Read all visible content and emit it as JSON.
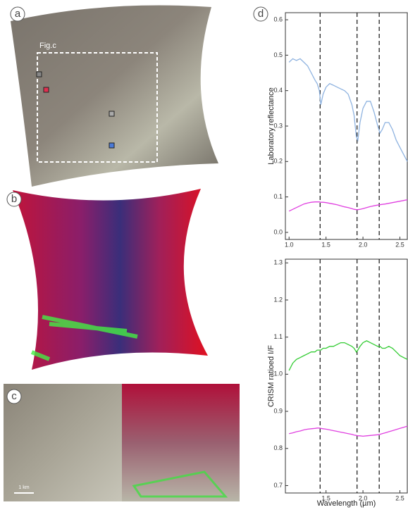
{
  "panel_labels": [
    "a",
    "b",
    "c",
    "d"
  ],
  "annotations": {
    "inset": "Fig.c",
    "scale_bar": "1 km"
  },
  "chart_data": [
    {
      "type": "line",
      "ylabel": "Laboratory reflectance",
      "x": [
        1.0,
        1.05,
        1.1,
        1.15,
        1.2,
        1.25,
        1.3,
        1.35,
        1.38,
        1.41,
        1.43,
        1.46,
        1.5,
        1.55,
        1.6,
        1.65,
        1.7,
        1.75,
        1.8,
        1.85,
        1.88,
        1.91,
        1.93,
        1.96,
        2.0,
        2.05,
        2.1,
        2.15,
        2.2,
        2.23,
        2.26,
        2.3,
        2.35,
        2.4,
        2.45,
        2.5,
        2.55,
        2.6
      ],
      "series": [
        {
          "color": "#8fb3e0",
          "values": [
            0.48,
            0.49,
            0.485,
            0.49,
            0.48,
            0.47,
            0.45,
            0.43,
            0.42,
            0.4,
            0.36,
            0.39,
            0.41,
            0.42,
            0.415,
            0.41,
            0.405,
            0.4,
            0.39,
            0.36,
            0.33,
            0.27,
            0.26,
            0.31,
            0.35,
            0.37,
            0.37,
            0.34,
            0.3,
            0.28,
            0.29,
            0.31,
            0.31,
            0.29,
            0.26,
            0.24,
            0.22,
            0.2
          ]
        },
        {
          "color": "#e040e0",
          "values": [
            0.06,
            0.065,
            0.07,
            0.075,
            0.08,
            0.083,
            0.085,
            0.086,
            0.086,
            0.086,
            0.085,
            0.085,
            0.084,
            0.082,
            0.08,
            0.078,
            0.075,
            0.072,
            0.07,
            0.067,
            0.065,
            0.064,
            0.064,
            0.065,
            0.067,
            0.07,
            0.073,
            0.075,
            0.077,
            0.078,
            0.079,
            0.08,
            0.082,
            0.084,
            0.086,
            0.088,
            0.09,
            0.092
          ]
        }
      ],
      "xlim": [
        0.95,
        2.6
      ],
      "xticks": [
        {
          "value": 1,
          "label": "1.0"
        },
        1.5,
        {
          "value": 2,
          "label": "2.0"
        },
        2.5
      ],
      "ylim": [
        -0.02,
        0.62
      ],
      "yticks": [
        {
          "value": 0,
          "label": "0.0"
        },
        0.1,
        0.2,
        0.3,
        0.4,
        0.5,
        0.6
      ],
      "vlines": [
        1.42,
        1.92,
        2.22
      ]
    },
    {
      "type": "line",
      "ylabel": "CRISM ratioed I/F",
      "xlabel": "Wavelength (µm)",
      "x": [
        1.0,
        1.05,
        1.1,
        1.15,
        1.2,
        1.25,
        1.3,
        1.35,
        1.38,
        1.41,
        1.43,
        1.46,
        1.5,
        1.55,
        1.6,
        1.65,
        1.7,
        1.75,
        1.8,
        1.85,
        1.88,
        1.91,
        1.93,
        1.96,
        2.0,
        2.05,
        2.1,
        2.15,
        2.2,
        2.23,
        2.26,
        2.3,
        2.35,
        2.4,
        2.45,
        2.5,
        2.55,
        2.6
      ],
      "series": [
        {
          "color": "#33cc33",
          "values": [
            1.01,
            1.03,
            1.04,
            1.045,
            1.05,
            1.055,
            1.06,
            1.06,
            1.065,
            1.065,
            1.065,
            1.07,
            1.07,
            1.075,
            1.075,
            1.08,
            1.085,
            1.085,
            1.08,
            1.075,
            1.07,
            1.06,
            1.065,
            1.075,
            1.085,
            1.09,
            1.085,
            1.08,
            1.075,
            1.075,
            1.07,
            1.07,
            1.075,
            1.07,
            1.06,
            1.05,
            1.045,
            1.04
          ]
        },
        {
          "color": "#e040e0",
          "values": [
            0.84,
            0.842,
            0.845,
            0.847,
            0.85,
            0.852,
            0.853,
            0.854,
            0.855,
            0.855,
            0.854,
            0.853,
            0.852,
            0.85,
            0.848,
            0.846,
            0.844,
            0.842,
            0.84,
            0.838,
            0.836,
            0.835,
            0.834,
            0.834,
            0.833,
            0.834,
            0.835,
            0.836,
            0.837,
            0.838,
            0.84,
            0.842,
            0.845,
            0.848,
            0.851,
            0.854,
            0.857,
            0.86
          ]
        }
      ],
      "xlim": [
        0.95,
        2.6
      ],
      "xticks": [
        1.5,
        {
          "value": 2,
          "label": "2.0"
        },
        2.5
      ],
      "ylim": [
        0.68,
        1.31
      ],
      "yticks": [
        0.7,
        0.8,
        0.9,
        {
          "value": 1,
          "label": "1.0"
        },
        1.1,
        1.2,
        1.3
      ],
      "vlines": [
        1.42,
        1.92,
        2.22
      ]
    }
  ]
}
